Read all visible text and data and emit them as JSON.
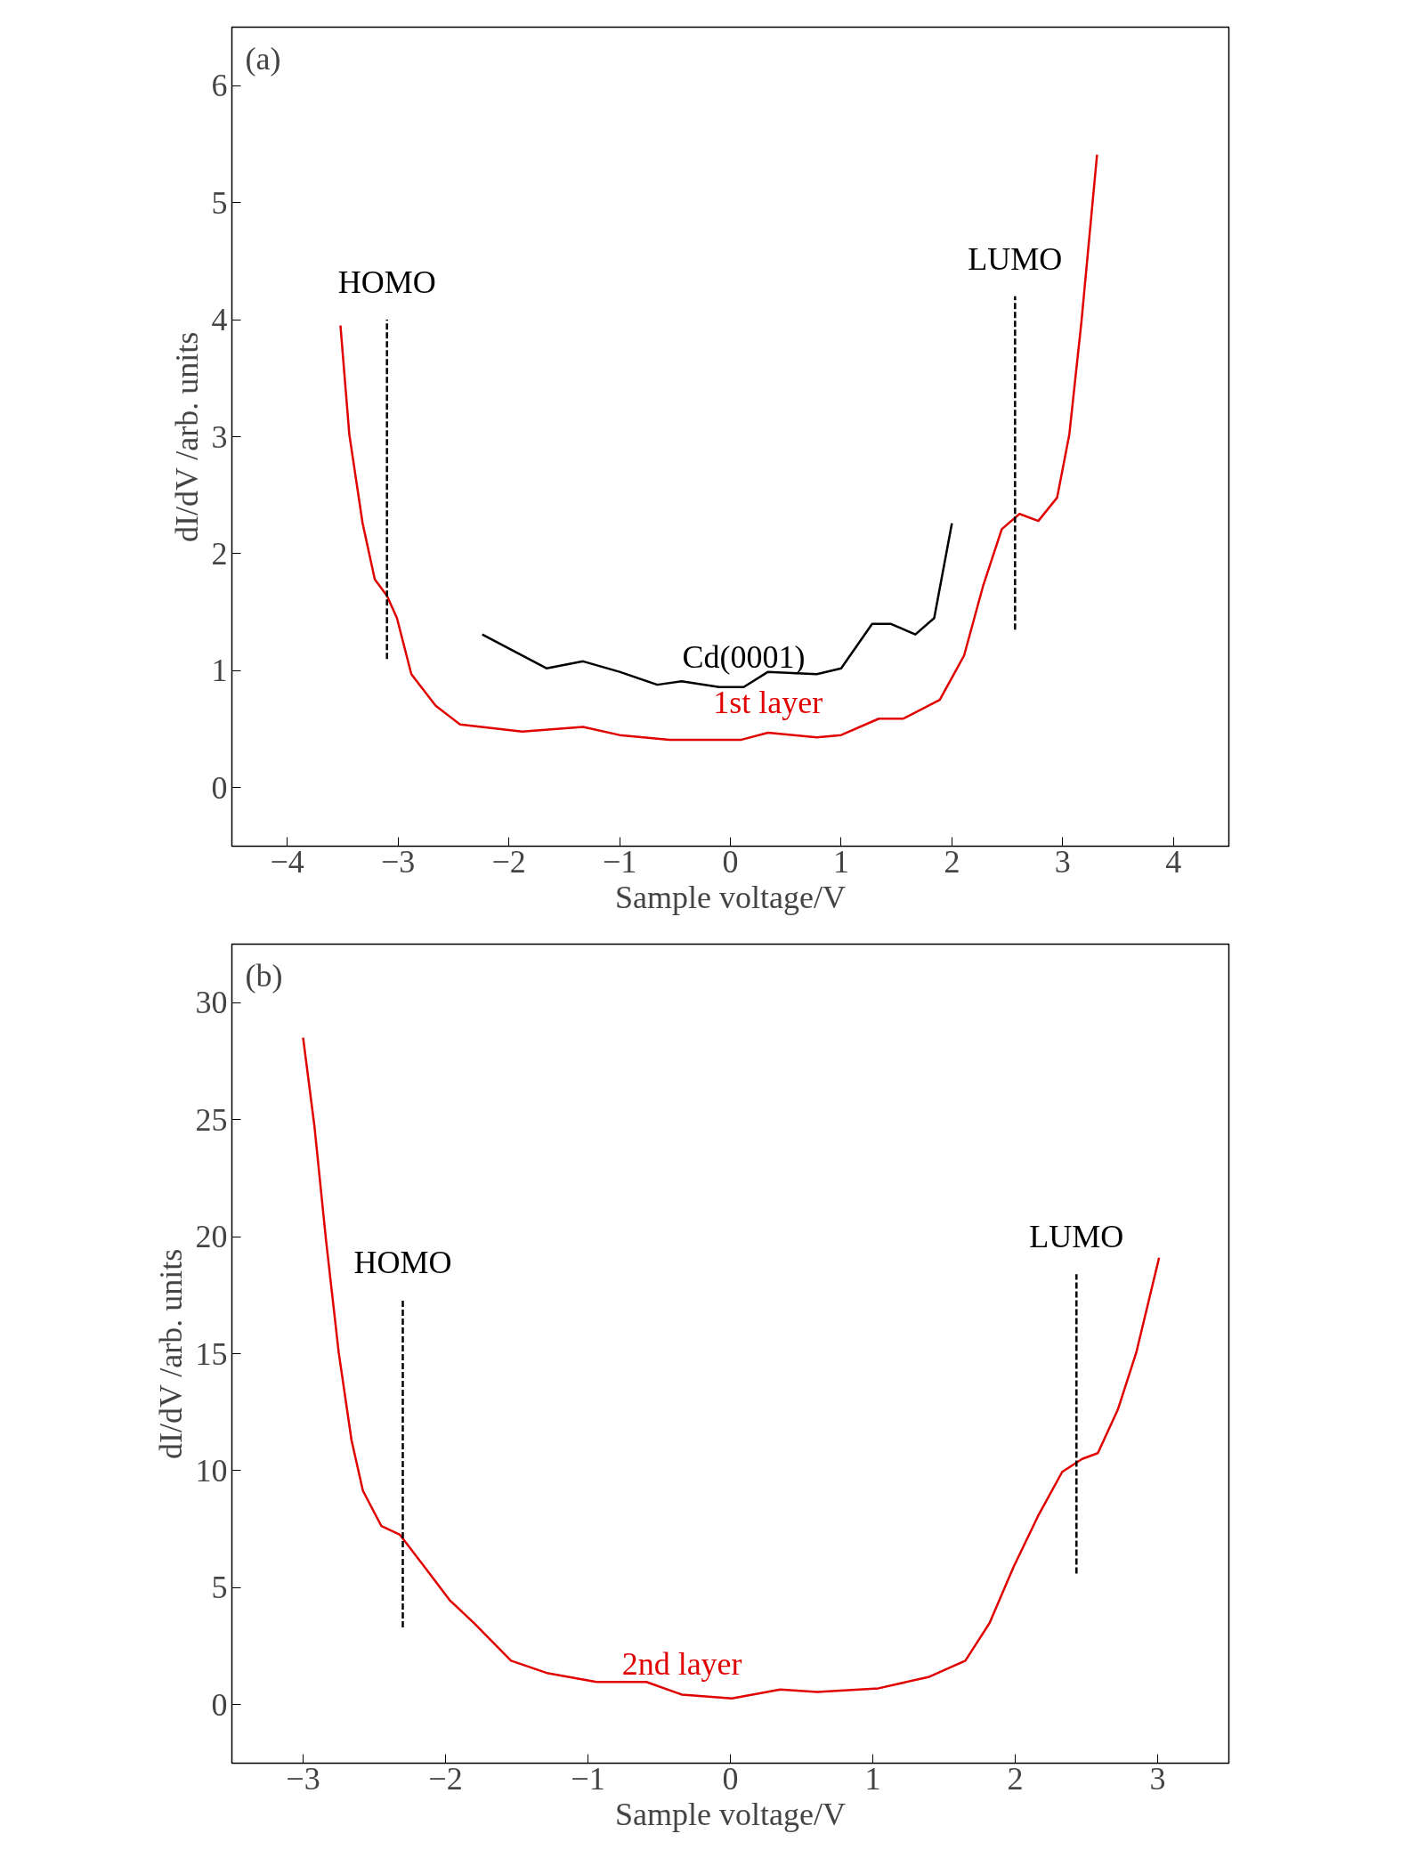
{
  "chart_data": [
    {
      "type": "line",
      "xlabel": "Sample voltage/V",
      "ylabel": "dI/dV /arb. units",
      "xlim": [
        -4.5,
        4.5
      ],
      "ylim": [
        -0.5,
        6.5
      ],
      "xticks": [
        {
          "value": -4,
          "label": "−4"
        },
        {
          "value": -3,
          "label": "−3"
        },
        {
          "value": -2,
          "label": "−2"
        },
        {
          "value": -1,
          "label": "−1"
        },
        0,
        1,
        2,
        3,
        4
      ],
      "yticks": [
        0,
        1,
        2,
        3,
        4,
        5,
        6
      ],
      "grid": false,
      "legend": false,
      "series": [
        {
          "name": "1st layer",
          "color": "#e00000",
          "x": [
            -3.52,
            -3.44,
            -3.32,
            -3.21,
            -3.1,
            -3.01,
            -2.88,
            -2.66,
            -2.44,
            -1.88,
            -1.33,
            -1.0,
            -0.55,
            0.1,
            0.34,
            0.78,
            1.0,
            1.34,
            1.56,
            1.89,
            2.11,
            2.28,
            2.45,
            2.61,
            2.78,
            2.95,
            3.06,
            3.17,
            3.31
          ],
          "values": [
            3.95,
            3.02,
            2.26,
            1.78,
            1.64,
            1.45,
            0.97,
            0.7,
            0.54,
            0.48,
            0.52,
            0.45,
            0.41,
            0.41,
            0.47,
            0.43,
            0.45,
            0.59,
            0.59,
            0.75,
            1.13,
            1.72,
            2.21,
            2.34,
            2.28,
            2.48,
            3.02,
            3.99,
            5.41
          ]
        },
        {
          "name": "Cd(0001)",
          "color": "#000000",
          "x": [
            -2.24,
            -2.0,
            -1.66,
            -1.33,
            -1.0,
            -0.66,
            -0.44,
            -0.1,
            0.12,
            0.34,
            0.78,
            1.0,
            1.28,
            1.45,
            1.67,
            1.84,
            2.0
          ],
          "values": [
            1.31,
            1.19,
            1.02,
            1.08,
            0.99,
            0.88,
            0.91,
            0.86,
            0.86,
            0.99,
            0.97,
            1.02,
            1.4,
            1.4,
            1.31,
            1.45,
            2.26
          ]
        },
        {
          "name": "HOMO",
          "color": "#000000",
          "line_style": "dashed",
          "x": [
            -3.1,
            -3.1
          ],
          "values": [
            1.1,
            4.0
          ]
        },
        {
          "name": "LUMO",
          "color": "#000000",
          "line_style": "dashed",
          "x": [
            2.57,
            2.57
          ],
          "values": [
            1.35,
            4.2
          ]
        }
      ],
      "annotations": [
        "(a)"
      ]
    },
    {
      "type": "line",
      "xlabel": "Sample voltage/V",
      "ylabel": "dI/dV /arb. units",
      "xlim": [
        -3.5,
        3.5
      ],
      "ylim": [
        -2.5,
        32.5
      ],
      "xticks": [
        {
          "value": -3,
          "label": "−3"
        },
        {
          "value": -2,
          "label": "−2"
        },
        {
          "value": -1,
          "label": "−1"
        },
        0,
        1,
        2,
        3
      ],
      "yticks": [
        0,
        5,
        10,
        15,
        20,
        25,
        30
      ],
      "grid": false,
      "legend": false,
      "series": [
        {
          "name": "2nd layer",
          "color": "#e00000",
          "x": [
            -3.0,
            -2.92,
            -2.84,
            -2.75,
            -2.66,
            -2.58,
            -2.45,
            -2.32,
            -2.15,
            -1.97,
            -1.8,
            -1.54,
            -1.28,
            -0.94,
            -0.59,
            -0.34,
            0.01,
            0.35,
            0.61,
            1.04,
            1.39,
            1.65,
            1.82,
            1.99,
            2.16,
            2.33,
            2.47,
            2.58,
            2.72,
            2.85,
            3.01
          ],
          "values": [
            28.5,
            24.7,
            19.9,
            15.05,
            11.3,
            9.14,
            7.63,
            7.26,
            5.91,
            4.46,
            3.49,
            1.88,
            1.34,
            0.97,
            0.97,
            0.43,
            0.27,
            0.65,
            0.54,
            0.7,
            1.18,
            1.88,
            3.49,
            5.91,
            8.06,
            9.95,
            10.5,
            10.75,
            12.6,
            15.05,
            19.1
          ]
        },
        {
          "name": "HOMO",
          "color": "#000000",
          "line_style": "dashed",
          "x": [
            -2.3,
            -2.3
          ],
          "values": [
            3.3,
            17.3
          ]
        },
        {
          "name": "LUMO",
          "color": "#000000",
          "line_style": "dashed",
          "x": [
            2.43,
            2.43
          ],
          "values": [
            5.6,
            18.4
          ]
        }
      ],
      "annotations": [
        "(b)"
      ]
    }
  ]
}
